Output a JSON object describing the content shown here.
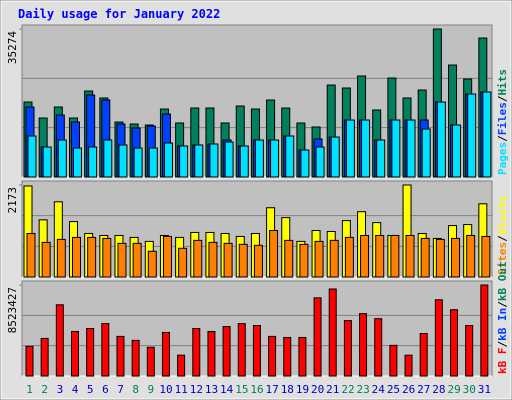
{
  "legend_separator": "/",
  "chart_data": [
    {
      "type": "bar",
      "title": "Daily usage for January 2022",
      "ylim": [
        0,
        35274
      ],
      "yticks": [
        35274
      ],
      "series": [
        {
          "name": "Hits",
          "color": "#00805c",
          "values": [
            17870,
            14060,
            16680,
            14060,
            20490,
            18830,
            13110,
            12630,
            12390,
            16200,
            12870,
            16440,
            16440,
            12870,
            16920,
            16200,
            18350,
            16440,
            12870,
            11920,
            21920,
            21210,
            24070,
            15970,
            23590,
            18830,
            20730,
            35274,
            26690,
            23350,
            33120
          ]
        },
        {
          "name": "Files",
          "color": "#0040ff",
          "values": [
            16680,
            7150,
            14770,
            13110,
            19540,
            18350,
            12630,
            11680,
            12150,
            15010,
            7390,
            7630,
            7860,
            8820,
            7390,
            8820,
            8820,
            9770,
            6430,
            9060,
            9530,
            13580,
            13580,
            8820,
            13580,
            13580,
            13580,
            17870,
            12390,
            19780,
            20260
          ]
        },
        {
          "name": "Pages",
          "color": "#00e0ff",
          "values": [
            9770,
            7150,
            8820,
            6910,
            7150,
            8820,
            7630,
            6910,
            6910,
            8100,
            7390,
            7630,
            7860,
            8340,
            7390,
            8820,
            8820,
            9770,
            6430,
            7150,
            9530,
            13580,
            13580,
            8820,
            13580,
            13580,
            11440,
            17870,
            12390,
            19780,
            20260
          ]
        }
      ]
    },
    {
      "type": "bar",
      "ylim": [
        0,
        2173
      ],
      "yticks": [
        2173
      ],
      "series": [
        {
          "name": "Visits",
          "color": "#ffff00",
          "values": [
            2150,
            1350,
            1776,
            1309,
            1028,
            981,
            981,
            935,
            841,
            981,
            935,
            1052,
            1052,
            1028,
            958,
            1028,
            1636,
            1402,
            841,
            1098,
            1075,
            1332,
            1542,
            1285,
            981,
            2173,
            1028,
            911,
            1215,
            1239,
            1729
          ]
        },
        {
          "name": "Sites",
          "color": "#ff8000",
          "values": [
            1028,
            818,
            888,
            935,
            935,
            911,
            795,
            795,
            608,
            958,
            678,
            865,
            818,
            795,
            771,
            748,
            1098,
            865,
            771,
            841,
            865,
            935,
            981,
            981,
            981,
            981,
            911,
            888,
            911,
            981,
            958
          ]
        }
      ]
    },
    {
      "type": "bar",
      "ylim": [
        0,
        8523427
      ],
      "yticks": [
        8523427
      ],
      "categories": [
        "1",
        "2",
        "3",
        "4",
        "5",
        "6",
        "7",
        "8",
        "9",
        "10",
        "11",
        "12",
        "13",
        "14",
        "15",
        "16",
        "17",
        "18",
        "19",
        "20",
        "21",
        "22",
        "23",
        "24",
        "25",
        "26",
        "27",
        "28",
        "29",
        "30",
        "31"
      ],
      "category_colors": [
        "#00805c",
        "#00805c",
        "#0000c0",
        "#0000c0",
        "#0000c0",
        "#0000c0",
        "#0000c0",
        "#00805c",
        "#00805c",
        "#0000c0",
        "#0000c0",
        "#0000c0",
        "#0000c0",
        "#0000c0",
        "#00805c",
        "#00805c",
        "#0000c0",
        "#0000c0",
        "#0000c0",
        "#0000c0",
        "#0000c0",
        "#00805c",
        "#00805c",
        "#0000c0",
        "#0000c0",
        "#0000c0",
        "#0000c0",
        "#0000c0",
        "#00805c",
        "#00805c",
        "#0000c0"
      ],
      "series": [
        {
          "name": "kB F",
          "color": "#ff0000",
          "values": [
            2779000,
            3520000,
            6670000,
            4170000,
            4450000,
            4910000,
            3710000,
            3340000,
            2690000,
            4080000,
            1950000,
            4450000,
            4170000,
            4630000,
            4910000,
            4730000,
            3710000,
            3610000,
            3610000,
            7320000,
            8150000,
            5190000,
            5840000,
            5370000,
            2870000,
            1950000,
            3980000,
            7140000,
            6210000,
            4730000,
            8523427
          ]
        }
      ],
      "legend": [
        {
          "name": "kB In",
          "color": "#0040ff"
        },
        {
          "name": "kB Out",
          "color": "#00805c"
        }
      ]
    }
  ]
}
